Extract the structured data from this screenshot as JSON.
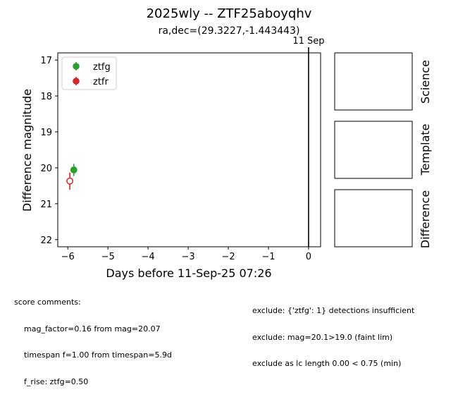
{
  "figure": {
    "title": "2025wly -- ZTF25aboyqhv",
    "subtitle": "ra,dec=(29.3227,-1.443443)"
  },
  "panels": {
    "science_label": "Science",
    "template_label": "Template",
    "difference_label": "Difference"
  },
  "score_comments": {
    "heading": "score comments:",
    "lines": [
      "mag_factor=0.16 from mag=20.07",
      "timespan f=1.00 from timespan=5.9d",
      "f_rise: ztfg=0.50"
    ]
  },
  "exclusions": {
    "lines": [
      "exclude: {'ztfg': 1} detections insufficient",
      "exclude: mag=20.1>19.0 (faint lim)",
      "exclude as lc length 0.00 < 0.75 (min)"
    ]
  },
  "chart_data": {
    "type": "scatter",
    "title": "2025wly -- ZTF25aboyqhv",
    "subtitle": "ra,dec=(29.3227,-1.443443)",
    "xlabel": "Days before 11-Sep-25 07:26",
    "ylabel": "Difference magnitude",
    "xlim": [
      -6.25,
      0.3
    ],
    "ylim": [
      22.2,
      16.8
    ],
    "y_inverted": true,
    "xticks": [
      -6,
      -5,
      -4,
      -3,
      -2,
      -1,
      0
    ],
    "xtick_labels": [
      "−6",
      "−5",
      "−4",
      "−3",
      "−2",
      "−1",
      "0"
    ],
    "yticks": [
      17,
      18,
      19,
      20,
      21,
      22
    ],
    "grid": false,
    "legend_position": "top-left",
    "vline": {
      "x": 0,
      "label": "11 Sep"
    },
    "series": [
      {
        "name": "ztfg",
        "color": "#2ca02c",
        "marker": "filled-circle",
        "points": [
          {
            "x": -5.85,
            "y": 20.06,
            "yerr": 0.17
          }
        ]
      },
      {
        "name": "ztfr",
        "color": "#d62728",
        "marker": "open-circle",
        "points": [
          {
            "x": -5.95,
            "y": 20.37,
            "yerr": 0.24
          }
        ]
      }
    ]
  }
}
